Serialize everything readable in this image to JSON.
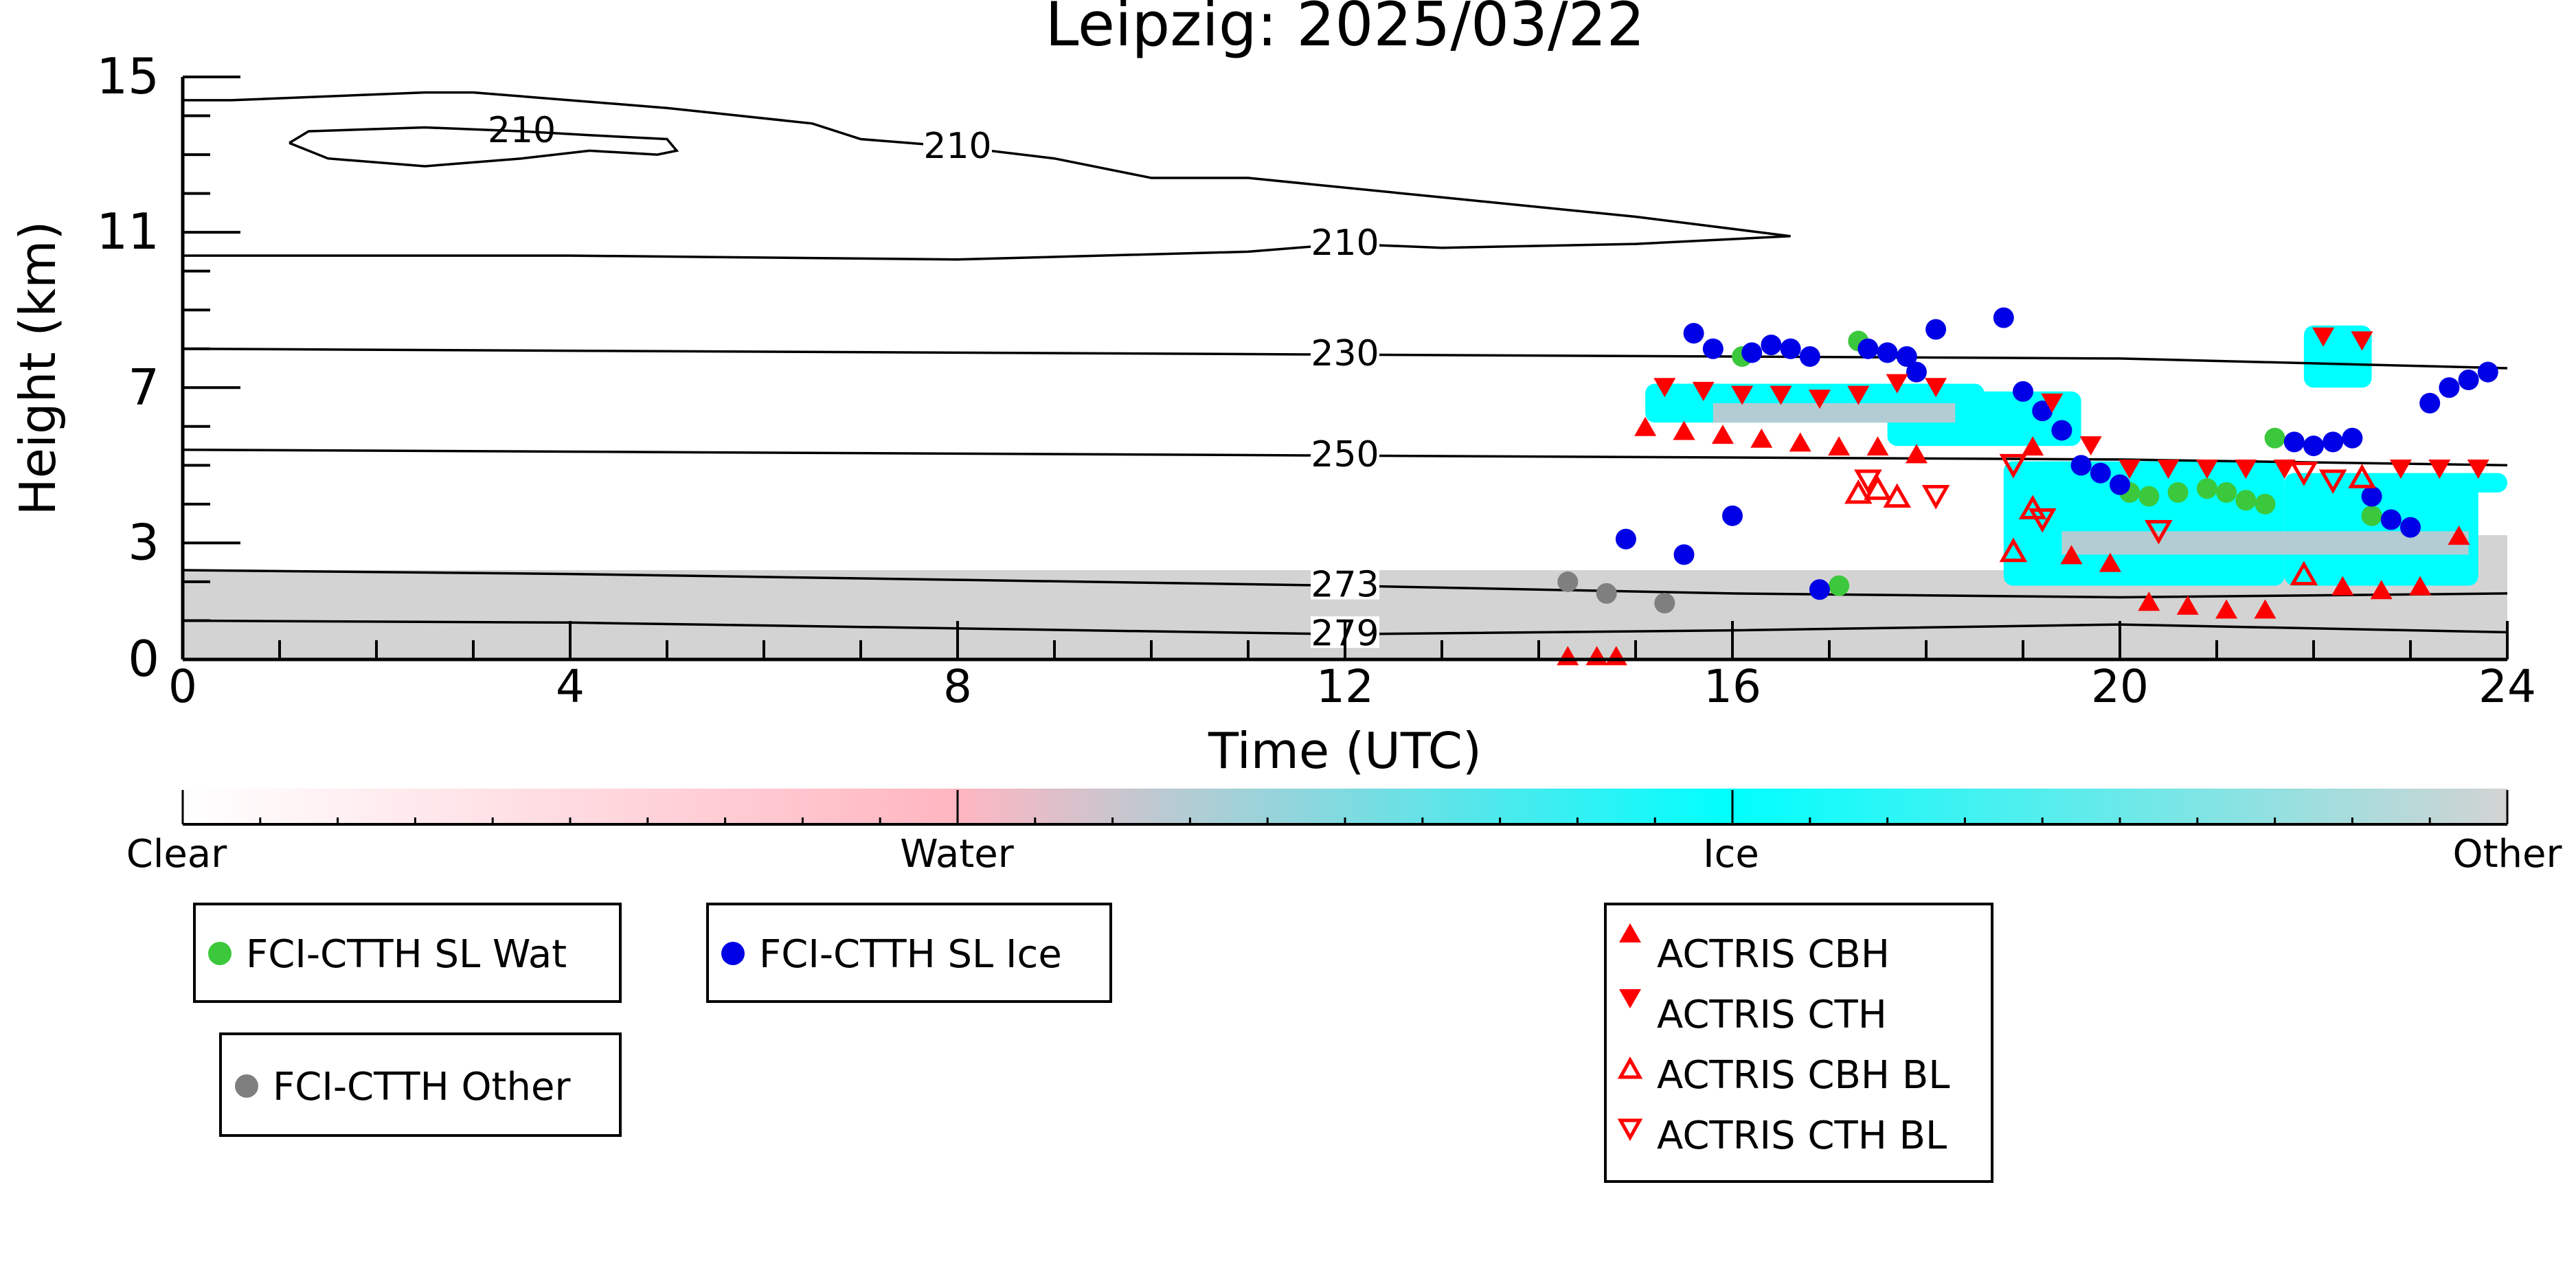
{
  "chart_data": {
    "type": "scatter",
    "title": "Leipzig: 2025/03/22",
    "xlabel": "Time (UTC)",
    "ylabel": "Height (km)",
    "xlim": [
      0,
      24
    ],
    "ylim": [
      0,
      15
    ],
    "xticks": [
      0,
      4,
      8,
      12,
      16,
      20,
      24
    ],
    "yticks": [
      0,
      3,
      7,
      11,
      15
    ],
    "grid": false,
    "background_field": {
      "other_ground_layer": {
        "x": [
          0,
          24
        ],
        "top_km": [
          2.3,
          2.3
        ]
      },
      "other_layer_right": {
        "x": [
          20,
          24
        ],
        "top_km": [
          3.2,
          3.2
        ]
      },
      "ice_regions": [
        {
          "x": [
            15.1,
            18.6
          ],
          "y": [
            6.1,
            7.1
          ]
        },
        {
          "x": [
            17.6,
            19.6
          ],
          "y": [
            5.5,
            6.9
          ]
        },
        {
          "x": [
            18.8,
            21.7
          ],
          "y": [
            1.9,
            5.1
          ]
        },
        {
          "x": [
            21.7,
            23.7
          ],
          "y": [
            1.9,
            4.8
          ]
        },
        {
          "x": [
            21.9,
            22.6
          ],
          "y": [
            7.0,
            8.6
          ]
        },
        {
          "x": [
            23.5,
            24
          ],
          "y": [
            4.3,
            4.8
          ]
        }
      ],
      "water_streaks": [
        {
          "x": [
            15.8,
            18.3
          ],
          "y": [
            6.1,
            6.6
          ]
        },
        {
          "x": [
            19.4,
            23.6
          ],
          "y": [
            2.7,
            3.3
          ]
        }
      ]
    },
    "temperature_contours": [
      {
        "label": "210",
        "x": [
          0,
          0.5,
          2.5,
          3,
          5,
          6.5,
          7,
          8,
          9,
          10,
          11,
          13,
          15,
          16.6
        ],
        "y": [
          14.4,
          14.4,
          14.6,
          14.6,
          14.2,
          13.8,
          13.4,
          13.2,
          12.9,
          12.4,
          12.4,
          11.9,
          11.4,
          10.9
        ]
      },
      {
        "label": "210",
        "x": [
          0,
          4,
          8,
          11,
          12,
          13,
          15,
          16.6
        ],
        "y": [
          10.4,
          10.4,
          10.3,
          10.5,
          10.7,
          10.6,
          10.7,
          10.9
        ]
      },
      {
        "label": "210",
        "x": [
          1.1,
          1.3,
          2.5,
          3.5,
          4.2,
          5,
          5.1,
          4.9,
          4.2,
          3.5,
          2.5,
          1.5,
          1.1
        ],
        "y": [
          13.3,
          13.6,
          13.7,
          13.6,
          13.5,
          13.4,
          13.1,
          13.0,
          13.1,
          12.9,
          12.7,
          12.9,
          13.3
        ]
      },
      {
        "label": "230",
        "x": [
          0,
          4,
          8,
          12,
          16,
          20,
          24
        ],
        "y": [
          8.0,
          7.95,
          7.9,
          7.85,
          7.8,
          7.75,
          7.5
        ]
      },
      {
        "label": "250",
        "x": [
          0,
          4,
          8,
          12,
          16,
          20,
          24
        ],
        "y": [
          5.4,
          5.35,
          5.3,
          5.25,
          5.2,
          5.15,
          5.0
        ]
      },
      {
        "label": "273",
        "x": [
          0,
          4,
          8,
          12,
          16,
          20,
          24
        ],
        "y": [
          2.3,
          2.2,
          2.05,
          1.9,
          1.7,
          1.6,
          1.7
        ]
      },
      {
        "label": "279",
        "x": [
          0,
          4,
          8,
          12,
          16,
          20,
          24
        ],
        "y": [
          1.0,
          0.95,
          0.8,
          0.65,
          0.75,
          0.9,
          0.7
        ]
      }
    ],
    "series": [
      {
        "name": "FCI-CTTH SL Wat",
        "color": "#3cc83c",
        "marker": "circle",
        "x": [
          16.1,
          17.3,
          17.1,
          20.1,
          20.3,
          20.6,
          20.9,
          21.1,
          21.3,
          21.5,
          21.6,
          22.6
        ],
        "y": [
          7.8,
          8.2,
          1.9,
          4.3,
          4.2,
          4.3,
          4.4,
          4.3,
          4.1,
          4.0,
          5.7,
          3.7
        ]
      },
      {
        "name": "FCI-CTTH SL Ice",
        "color": "#0000e6",
        "marker": "circle",
        "x": [
          15.6,
          15.8,
          16.2,
          16.4,
          16.6,
          16.8,
          17.4,
          17.6,
          17.8,
          17.9,
          18.1,
          18.8,
          19.0,
          19.2,
          19.4,
          19.6,
          19.8,
          20.0,
          16.9,
          16.0,
          15.5,
          14.9,
          21.8,
          22.0,
          22.2,
          22.4,
          22.6,
          22.8,
          23.0,
          23.2,
          23.4,
          23.6,
          23.8
        ],
        "y": [
          8.4,
          8.0,
          7.9,
          8.1,
          8.0,
          7.8,
          8.0,
          7.9,
          7.8,
          7.4,
          8.5,
          8.8,
          6.9,
          6.4,
          5.9,
          5.0,
          4.8,
          4.5,
          1.8,
          3.7,
          2.7,
          3.1,
          5.6,
          5.5,
          5.6,
          5.7,
          4.2,
          3.6,
          3.4,
          6.6,
          7.0,
          7.2,
          7.4
        ]
      },
      {
        "name": "FCI-CTTH Other",
        "color": "#7f7f7f",
        "marker": "circle",
        "x": [
          14.3,
          14.7,
          15.3
        ],
        "y": [
          2.0,
          1.7,
          1.45
        ]
      },
      {
        "name": "ACTRIS CBH",
        "color": "#ff0000",
        "marker": "triangle-up",
        "x": [
          15.1,
          15.5,
          15.9,
          16.3,
          16.7,
          17.1,
          17.5,
          17.9,
          19.1,
          19.5,
          19.9,
          20.3,
          20.7,
          21.1,
          21.5,
          22.3,
          22.7,
          23.1,
          23.5,
          14.3,
          14.6,
          14.8
        ],
        "y": [
          6.0,
          5.9,
          5.8,
          5.7,
          5.6,
          5.5,
          5.5,
          5.3,
          5.5,
          2.7,
          2.5,
          1.5,
          1.4,
          1.3,
          1.3,
          1.9,
          1.8,
          1.9,
          3.2,
          0.1,
          0.1,
          0.1
        ]
      },
      {
        "name": "ACTRIS CTH",
        "color": "#ff0000",
        "marker": "triangle-down",
        "x": [
          15.3,
          15.7,
          16.1,
          16.5,
          16.9,
          17.3,
          17.7,
          18.1,
          19.3,
          19.7,
          20.1,
          20.5,
          20.9,
          21.3,
          21.7,
          22.1,
          22.5,
          22.9,
          23.3,
          23.7
        ],
        "y": [
          7.0,
          6.9,
          6.8,
          6.8,
          6.7,
          6.8,
          7.1,
          7.0,
          6.6,
          5.5,
          4.9,
          4.9,
          4.9,
          4.9,
          4.9,
          8.3,
          8.2,
          4.9,
          4.9,
          4.9
        ]
      },
      {
        "name": "ACTRIS CBH BL",
        "color": "#ff0000",
        "marker": "triangle-up-open",
        "x": [
          17.3,
          17.5,
          17.7,
          18.9,
          19.1,
          21.9,
          22.5
        ],
        "y": [
          4.3,
          4.4,
          4.2,
          2.8,
          3.9,
          2.2,
          4.7
        ]
      },
      {
        "name": "ACTRIS CTH BL",
        "color": "#ff0000",
        "marker": "triangle-down-open",
        "x": [
          17.4,
          18.1,
          18.9,
          19.2,
          20.4,
          21.9,
          22.2
        ],
        "y": [
          4.6,
          4.2,
          5.0,
          3.6,
          3.3,
          4.8,
          4.6
        ]
      }
    ],
    "colorbar": {
      "labels": [
        "Clear",
        "Water",
        "Ice",
        "Other"
      ],
      "colors": [
        "#ffffff",
        "#ffb6c1",
        "#00ffff",
        "#d3d3d3"
      ]
    },
    "legend_placement": "below-plot"
  }
}
